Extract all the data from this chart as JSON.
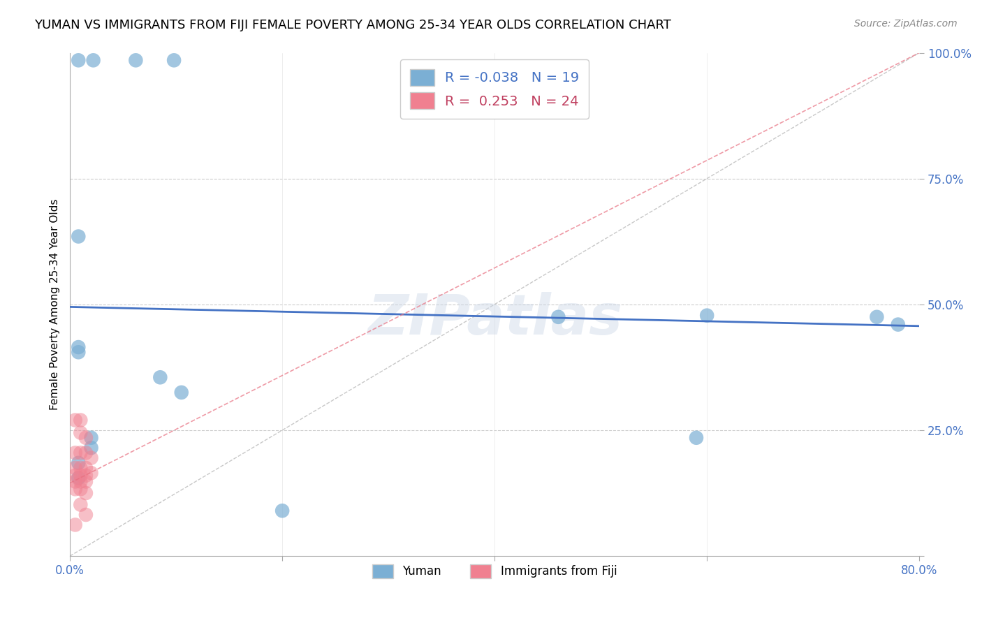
{
  "title": "YUMAN VS IMMIGRANTS FROM FIJI FEMALE POVERTY AMONG 25-34 YEAR OLDS CORRELATION CHART",
  "source": "Source: ZipAtlas.com",
  "ylabel": "Female Poverty Among 25-34 Year Olds",
  "xlim": [
    0.0,
    0.8
  ],
  "ylim": [
    0.0,
    1.0
  ],
  "xticks": [
    0.0,
    0.2,
    0.4,
    0.6,
    0.8
  ],
  "xtick_labels": [
    "0.0%",
    "",
    "",
    "",
    "80.0%"
  ],
  "yticks": [
    0.0,
    0.25,
    0.5,
    0.75,
    1.0
  ],
  "ytick_labels": [
    "",
    "25.0%",
    "50.0%",
    "75.0%",
    "100.0%"
  ],
  "legend_r_entries": [
    {
      "label_r": "R = -0.038",
      "label_n": "N = 19",
      "color": "#a8c4e0"
    },
    {
      "label_r": "R =  0.253",
      "label_n": "N = 24",
      "color": "#f4b8c1"
    }
  ],
  "legend_label_yuman": "Yuman",
  "legend_label_fiji": "Immigrants from Fiji",
  "yuman_scatter": [
    [
      0.008,
      0.985
    ],
    [
      0.022,
      0.985
    ],
    [
      0.062,
      0.985
    ],
    [
      0.098,
      0.985
    ],
    [
      0.008,
      0.635
    ],
    [
      0.008,
      0.405
    ],
    [
      0.085,
      0.355
    ],
    [
      0.105,
      0.325
    ],
    [
      0.008,
      0.415
    ],
    [
      0.2,
      0.09
    ],
    [
      0.46,
      0.475
    ],
    [
      0.6,
      0.478
    ],
    [
      0.76,
      0.475
    ],
    [
      0.59,
      0.235
    ],
    [
      0.78,
      0.46
    ],
    [
      0.008,
      0.185
    ],
    [
      0.008,
      0.155
    ],
    [
      0.02,
      0.235
    ],
    [
      0.02,
      0.215
    ]
  ],
  "fiji_scatter": [
    [
      0.005,
      0.27
    ],
    [
      0.01,
      0.27
    ],
    [
      0.01,
      0.245
    ],
    [
      0.015,
      0.235
    ],
    [
      0.005,
      0.205
    ],
    [
      0.01,
      0.205
    ],
    [
      0.015,
      0.205
    ],
    [
      0.02,
      0.195
    ],
    [
      0.005,
      0.175
    ],
    [
      0.01,
      0.175
    ],
    [
      0.015,
      0.175
    ],
    [
      0.005,
      0.16
    ],
    [
      0.01,
      0.16
    ],
    [
      0.015,
      0.16
    ],
    [
      0.02,
      0.165
    ],
    [
      0.005,
      0.148
    ],
    [
      0.01,
      0.148
    ],
    [
      0.015,
      0.148
    ],
    [
      0.005,
      0.133
    ],
    [
      0.01,
      0.133
    ],
    [
      0.015,
      0.125
    ],
    [
      0.01,
      0.102
    ],
    [
      0.015,
      0.082
    ],
    [
      0.005,
      0.062
    ]
  ],
  "yuman_color": "#7bafd4",
  "fiji_color": "#f08090",
  "yuman_line_color": "#4472c4",
  "fiji_line_color": "#e87080",
  "ref_line_color": "#c8c8c8",
  "background_color": "#ffffff",
  "watermark": "ZIPatlas",
  "title_fontsize": 13,
  "ylabel_fontsize": 11,
  "yuman_line": [
    0.0,
    0.495,
    0.8,
    0.457
  ],
  "fiji_line": [
    0.0,
    0.145,
    0.8,
    1.0
  ]
}
